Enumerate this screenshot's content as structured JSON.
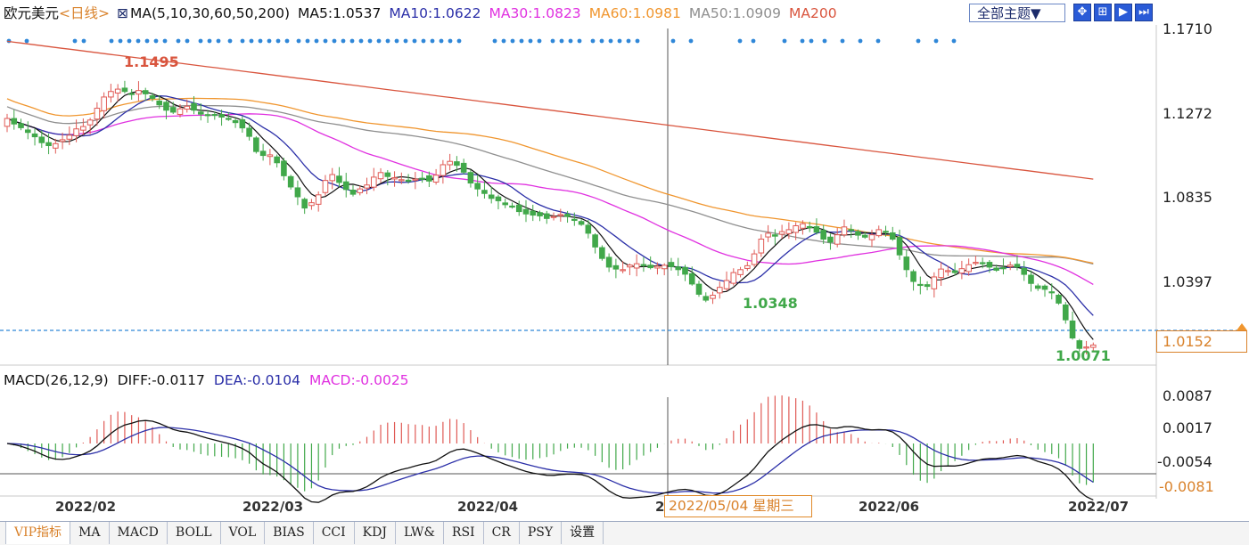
{
  "header": {
    "symbol": "欧元美元",
    "period": "<日线>",
    "ma_config": "MA(5,10,30,60,50,200)",
    "ma5": "MA5:1.0537",
    "ma10": "MA10:1.0622",
    "ma30": "MA30:1.0823",
    "ma60": "MA60:1.0981",
    "ma50": "MA50:1.0909",
    "ma200": "MA200",
    "theme_button": "全部主题▼"
  },
  "colors": {
    "up": "#e05a55",
    "down": "#41a84a",
    "ma5": "#111111",
    "ma10": "#2b2fa8",
    "ma30": "#e031e0",
    "ma60": "#f0962f",
    "ma50": "#8f8f8f",
    "ma200": "#d9553e",
    "dots": "#2f87d8",
    "crosshair": "#555555",
    "price_line": "#2f87d8"
  },
  "price_axis": {
    "ticks": [
      "1.1710",
      "1.1272",
      "1.0835",
      "1.0397"
    ],
    "current": "1.0152"
  },
  "annotations": {
    "high": "1.1495",
    "mid_low": "1.0348",
    "low": "1.0071"
  },
  "macd": {
    "title": "MACD(26,12,9)",
    "diff": "DIFF:-0.0117",
    "dea": "DEA:-0.0104",
    "macd": "MACD:-0.0025",
    "ticks": [
      "0.0087",
      "0.0017",
      "-0.0054"
    ],
    "current": "-0.0081"
  },
  "date_axis": {
    "labels": [
      "2022/02",
      "2022/03",
      "2022/04",
      "2",
      "2022/06",
      "2022/07"
    ],
    "crosshair_date": "2022/05/04 星期三"
  },
  "tabs": [
    "",
    "VIP指标",
    "MA",
    "MACD",
    "BOLL",
    "VOL",
    "BIAS",
    "CCI",
    "KDJ",
    "LW&",
    "RSI",
    "CR",
    "PSY",
    "设置"
  ],
  "active_tab": 1,
  "chart_data": {
    "type": "candlestick",
    "instrument": "欧元美元",
    "period": "日线",
    "ylim": [
      1.005,
      1.176
    ],
    "x_labels": [
      "2022/02",
      "2022/03",
      "2022/04",
      "2022/05",
      "2022/06",
      "2022/07"
    ],
    "close": [
      1.1303,
      1.1275,
      1.1256,
      1.1232,
      1.121,
      1.118,
      1.1165,
      1.1175,
      1.1195,
      1.1218,
      1.125,
      1.1262,
      1.1295,
      1.1355,
      1.1412,
      1.144,
      1.1452,
      1.144,
      1.1425,
      1.1445,
      1.1428,
      1.1405,
      1.1372,
      1.1345,
      1.1335,
      1.1352,
      1.1365,
      1.1345,
      1.1325,
      1.1322,
      1.1318,
      1.131,
      1.1302,
      1.1282,
      1.1255,
      1.1212,
      1.1135,
      1.1115,
      1.1118,
      1.1078,
      1.1012,
      1.0955,
      1.0905,
      1.0848,
      1.0875,
      1.0915,
      1.0988,
      1.1018,
      1.0978,
      1.0942,
      1.0918,
      1.0945,
      1.0965,
      1.1005,
      1.1028,
      1.1008,
      1.1002,
      1.0992,
      1.0985,
      1.0995,
      1.0998,
      1.0985,
      1.1015,
      1.1068,
      1.1085,
      1.1065,
      1.103,
      1.0975,
      1.0945,
      1.0922,
      1.0897,
      1.0885,
      1.0865,
      1.0855,
      1.083,
      1.0818,
      1.0812,
      1.0808,
      1.0795,
      1.0805,
      1.0815,
      1.0805,
      1.0785,
      1.0765,
      1.072,
      1.065,
      1.0592,
      1.0548,
      1.0538,
      1.0535,
      1.0558,
      1.0565,
      1.0555,
      1.0545,
      1.0552,
      1.0557,
      1.055,
      1.0535,
      1.0512,
      1.0462,
      1.041,
      1.038,
      1.0405,
      1.0445,
      1.048,
      1.052,
      1.0535,
      1.0555,
      1.0615,
      1.069,
      1.072,
      1.0705,
      1.0728,
      1.0738,
      1.0758,
      1.0768,
      1.0752,
      1.0725,
      1.069,
      1.0675,
      1.0712,
      1.0752,
      1.0735,
      1.071,
      1.07,
      1.0712,
      1.0738,
      1.0728,
      1.069,
      1.061,
      1.0535,
      1.0475,
      1.0455,
      1.045,
      1.0498,
      1.0538,
      1.053,
      1.052,
      1.054,
      1.056,
      1.0572,
      1.0565,
      1.0548,
      1.0532,
      1.0544,
      1.0558,
      1.0549,
      1.0511,
      1.0465,
      1.044,
      1.0435,
      1.0418,
      1.0365,
      1.028,
      1.0188,
      1.0135,
      1.0142,
      1.0152
    ],
    "ma200_endpoints": [
      1.1695,
      1.0995
    ],
    "markers": {
      "high": 1.1495,
      "low_may": 1.0348,
      "low_jul": 1.0071,
      "current": 1.0152
    },
    "macd_ylim": [
      -0.0094,
      0.0094
    ]
  }
}
